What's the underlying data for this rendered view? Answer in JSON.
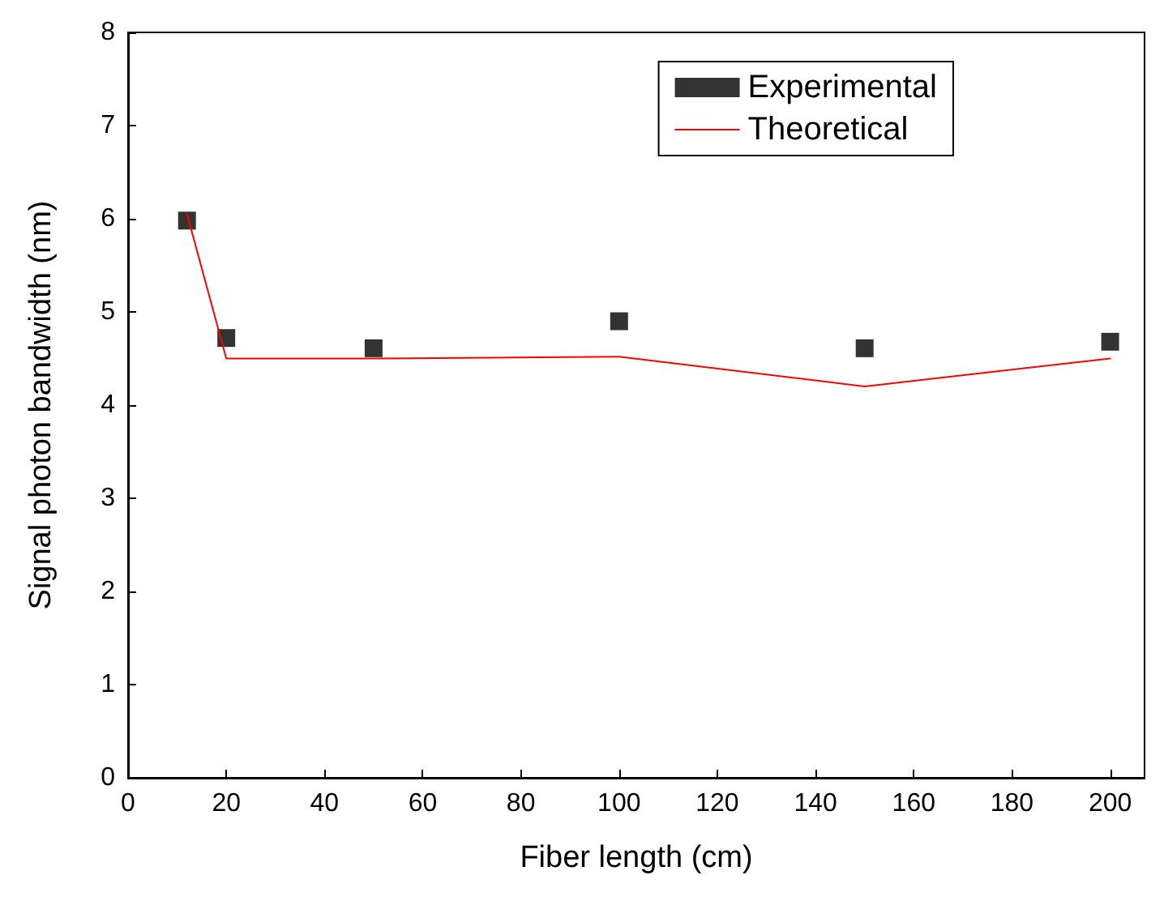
{
  "chart_data": {
    "type": "line",
    "xlabel": "Fiber length (cm)",
    "ylabel": "Signal photon bandwidth (nm)",
    "xlim": [
      0,
      207
    ],
    "xticks": [
      0,
      20,
      40,
      60,
      80,
      100,
      120,
      140,
      160,
      180,
      200
    ],
    "ylim": [
      0,
      8
    ],
    "yticks": [
      0,
      1,
      2,
      3,
      4,
      5,
      6,
      7,
      8
    ],
    "grid": false,
    "legend": "top right",
    "series": [
      {
        "name": "Experimental",
        "type": "scatter",
        "marker": "square",
        "color": "#000000",
        "x": [
          12,
          20,
          50,
          100,
          150,
          200
        ],
        "values": [
          5.98,
          4.72,
          4.61,
          4.9,
          4.61,
          4.68
        ]
      },
      {
        "name": "Theoretical",
        "type": "line",
        "marker": "none",
        "line_style": "solid",
        "color": "#ff0000",
        "x": [
          12,
          20,
          50,
          100,
          150,
          200
        ],
        "values": [
          6.05,
          4.5,
          4.5,
          4.52,
          4.2,
          4.5
        ]
      }
    ]
  }
}
